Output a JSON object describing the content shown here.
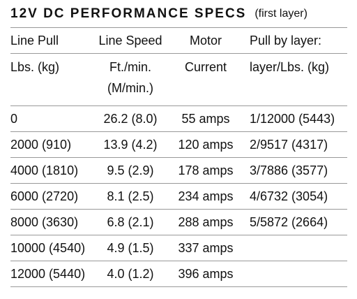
{
  "header": {
    "title": "12V DC PERFORMANCE SPECS",
    "subtitle": "(first layer)"
  },
  "table": {
    "headers": [
      [
        "Line Pull",
        "Line Speed",
        "Motor",
        "Pull by layer:"
      ],
      [
        "Lbs. (kg)",
        "Ft./min. (M/min.)",
        "Current",
        "layer/Lbs. (kg)"
      ]
    ],
    "rows": [
      [
        "0",
        "26.2 (8.0)",
        "55 amps",
        "1/12000 (5443)"
      ],
      [
        "2000 (910)",
        "13.9 (4.2)",
        "120 amps",
        "2/9517 (4317)"
      ],
      [
        "4000 (1810)",
        "9.5 (2.9)",
        "178 amps",
        "3/7886 (3577)"
      ],
      [
        "6000 (2720)",
        "8.1 (2.5)",
        "234 amps",
        "4/6732 (3054)"
      ],
      [
        "8000 (3630)",
        "6.8 (2.1)",
        "288 amps",
        "5/5872 (2664)"
      ],
      [
        "10000 (4540)",
        "4.9 (1.5)",
        "337 amps"
      ],
      [
        "12000 (5440)",
        "4.0 (1.2)",
        "396 amps"
      ]
    ]
  }
}
